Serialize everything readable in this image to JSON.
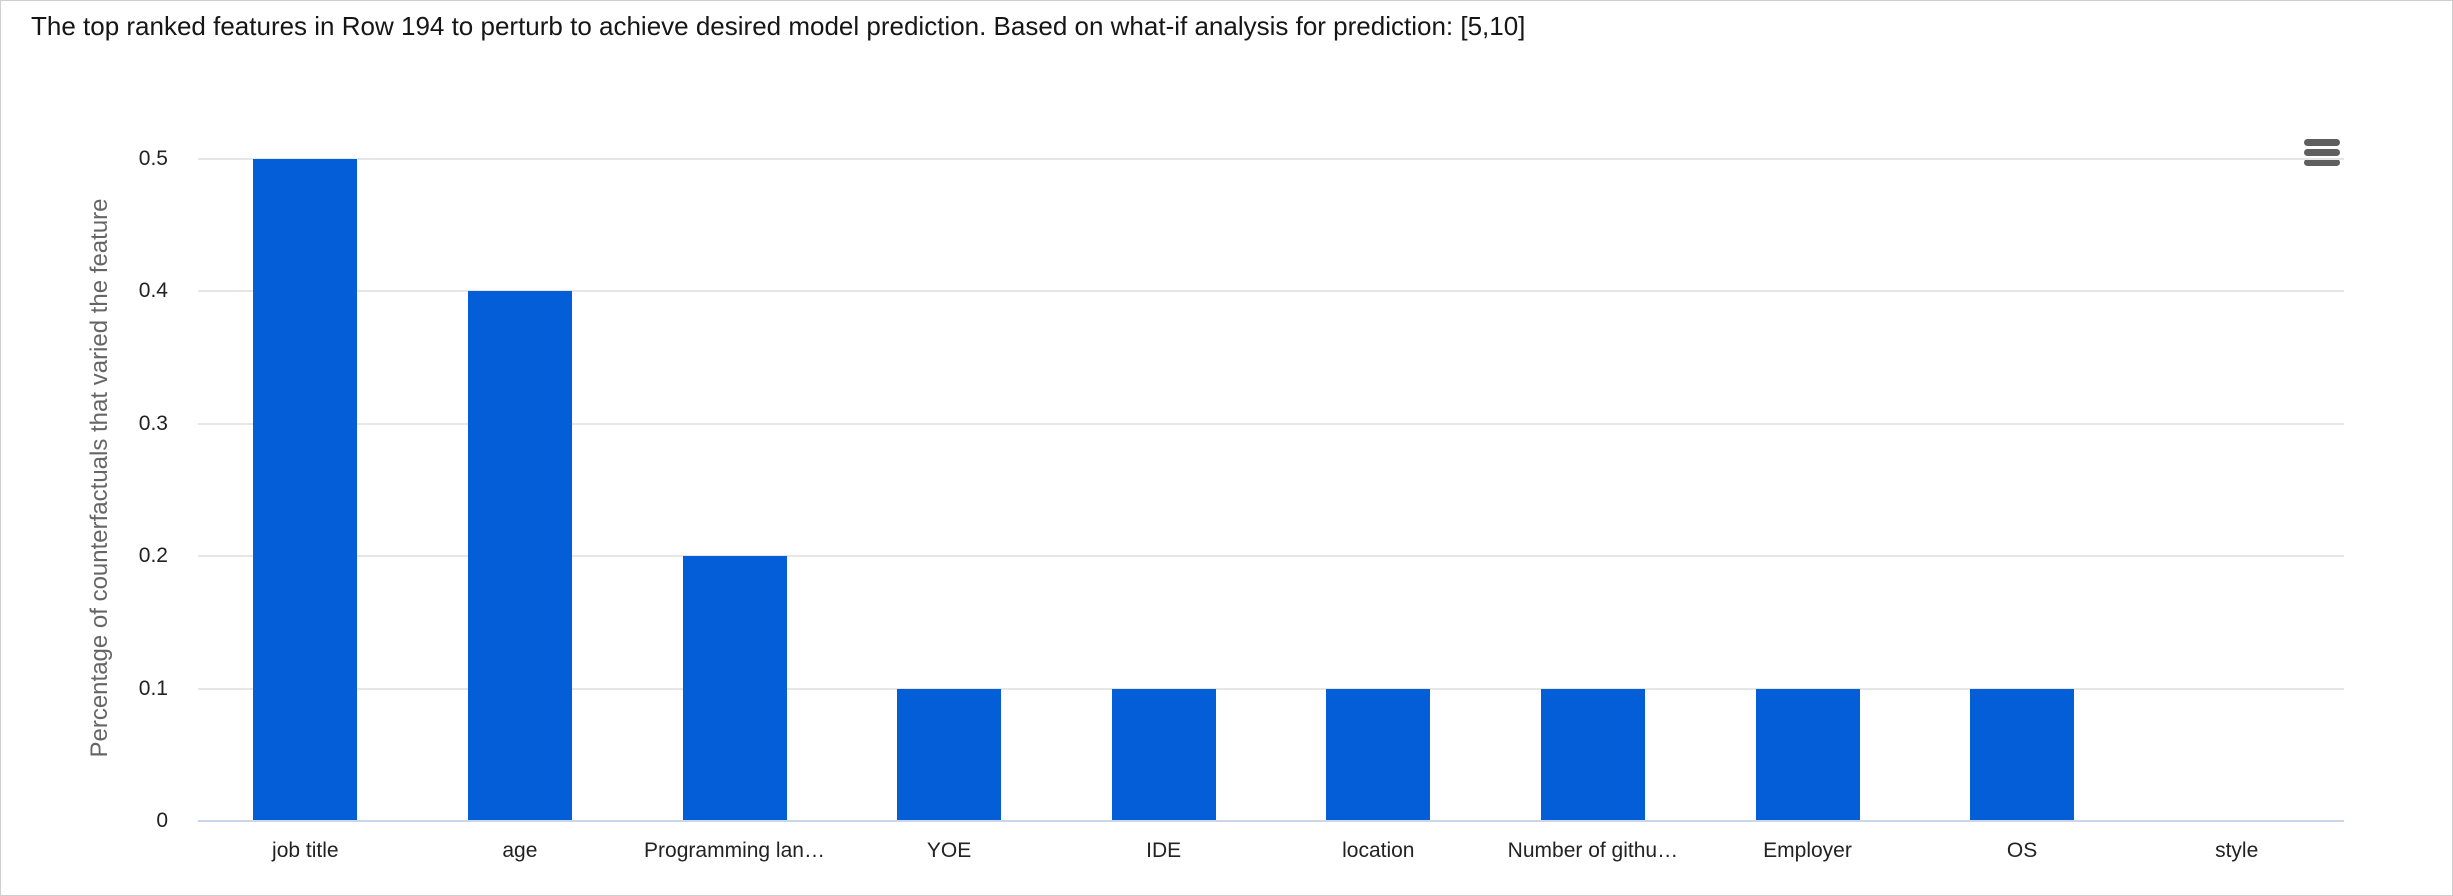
{
  "title": "The top ranked features in Row 194 to perturb to achieve desired model prediction. Based on what-if analysis for prediction: [5,10]",
  "menu": {
    "icon": "hamburger-menu-icon"
  },
  "colors": {
    "bar": "#035ED8",
    "gridline": "#e6e6e6",
    "axis_line": "#ccd6eb",
    "tick_label": "#222222",
    "axis_title": "#666666",
    "title_text": "#161616",
    "menu_icon": "#5f5f5f",
    "panel_border": "#cfcfcf"
  },
  "chart_data": {
    "type": "bar",
    "title": "The top ranked features in Row 194 to perturb to achieve desired model prediction. Based on what-if analysis for prediction: [5,10]",
    "categories": [
      "job title",
      "age",
      "Programming lan…",
      "YOE",
      "IDE",
      "location",
      "Number of githu…",
      "Employer",
      "OS",
      "style"
    ],
    "values": [
      0.5,
      0.4,
      0.2,
      0.1,
      0.1,
      0.1,
      0.1,
      0.1,
      0.1,
      0
    ],
    "xlabel": "",
    "ylabel": "Percentage of counterfactuals that varied the feature",
    "yticks": [
      0,
      0.1,
      0.2,
      0.3,
      0.4,
      0.5
    ],
    "ytick_labels": [
      "0",
      "0.1",
      "0.2",
      "0.3",
      "0.4",
      "0.5"
    ],
    "ylim": [
      0,
      0.5
    ],
    "grid": true,
    "legend": "none"
  }
}
